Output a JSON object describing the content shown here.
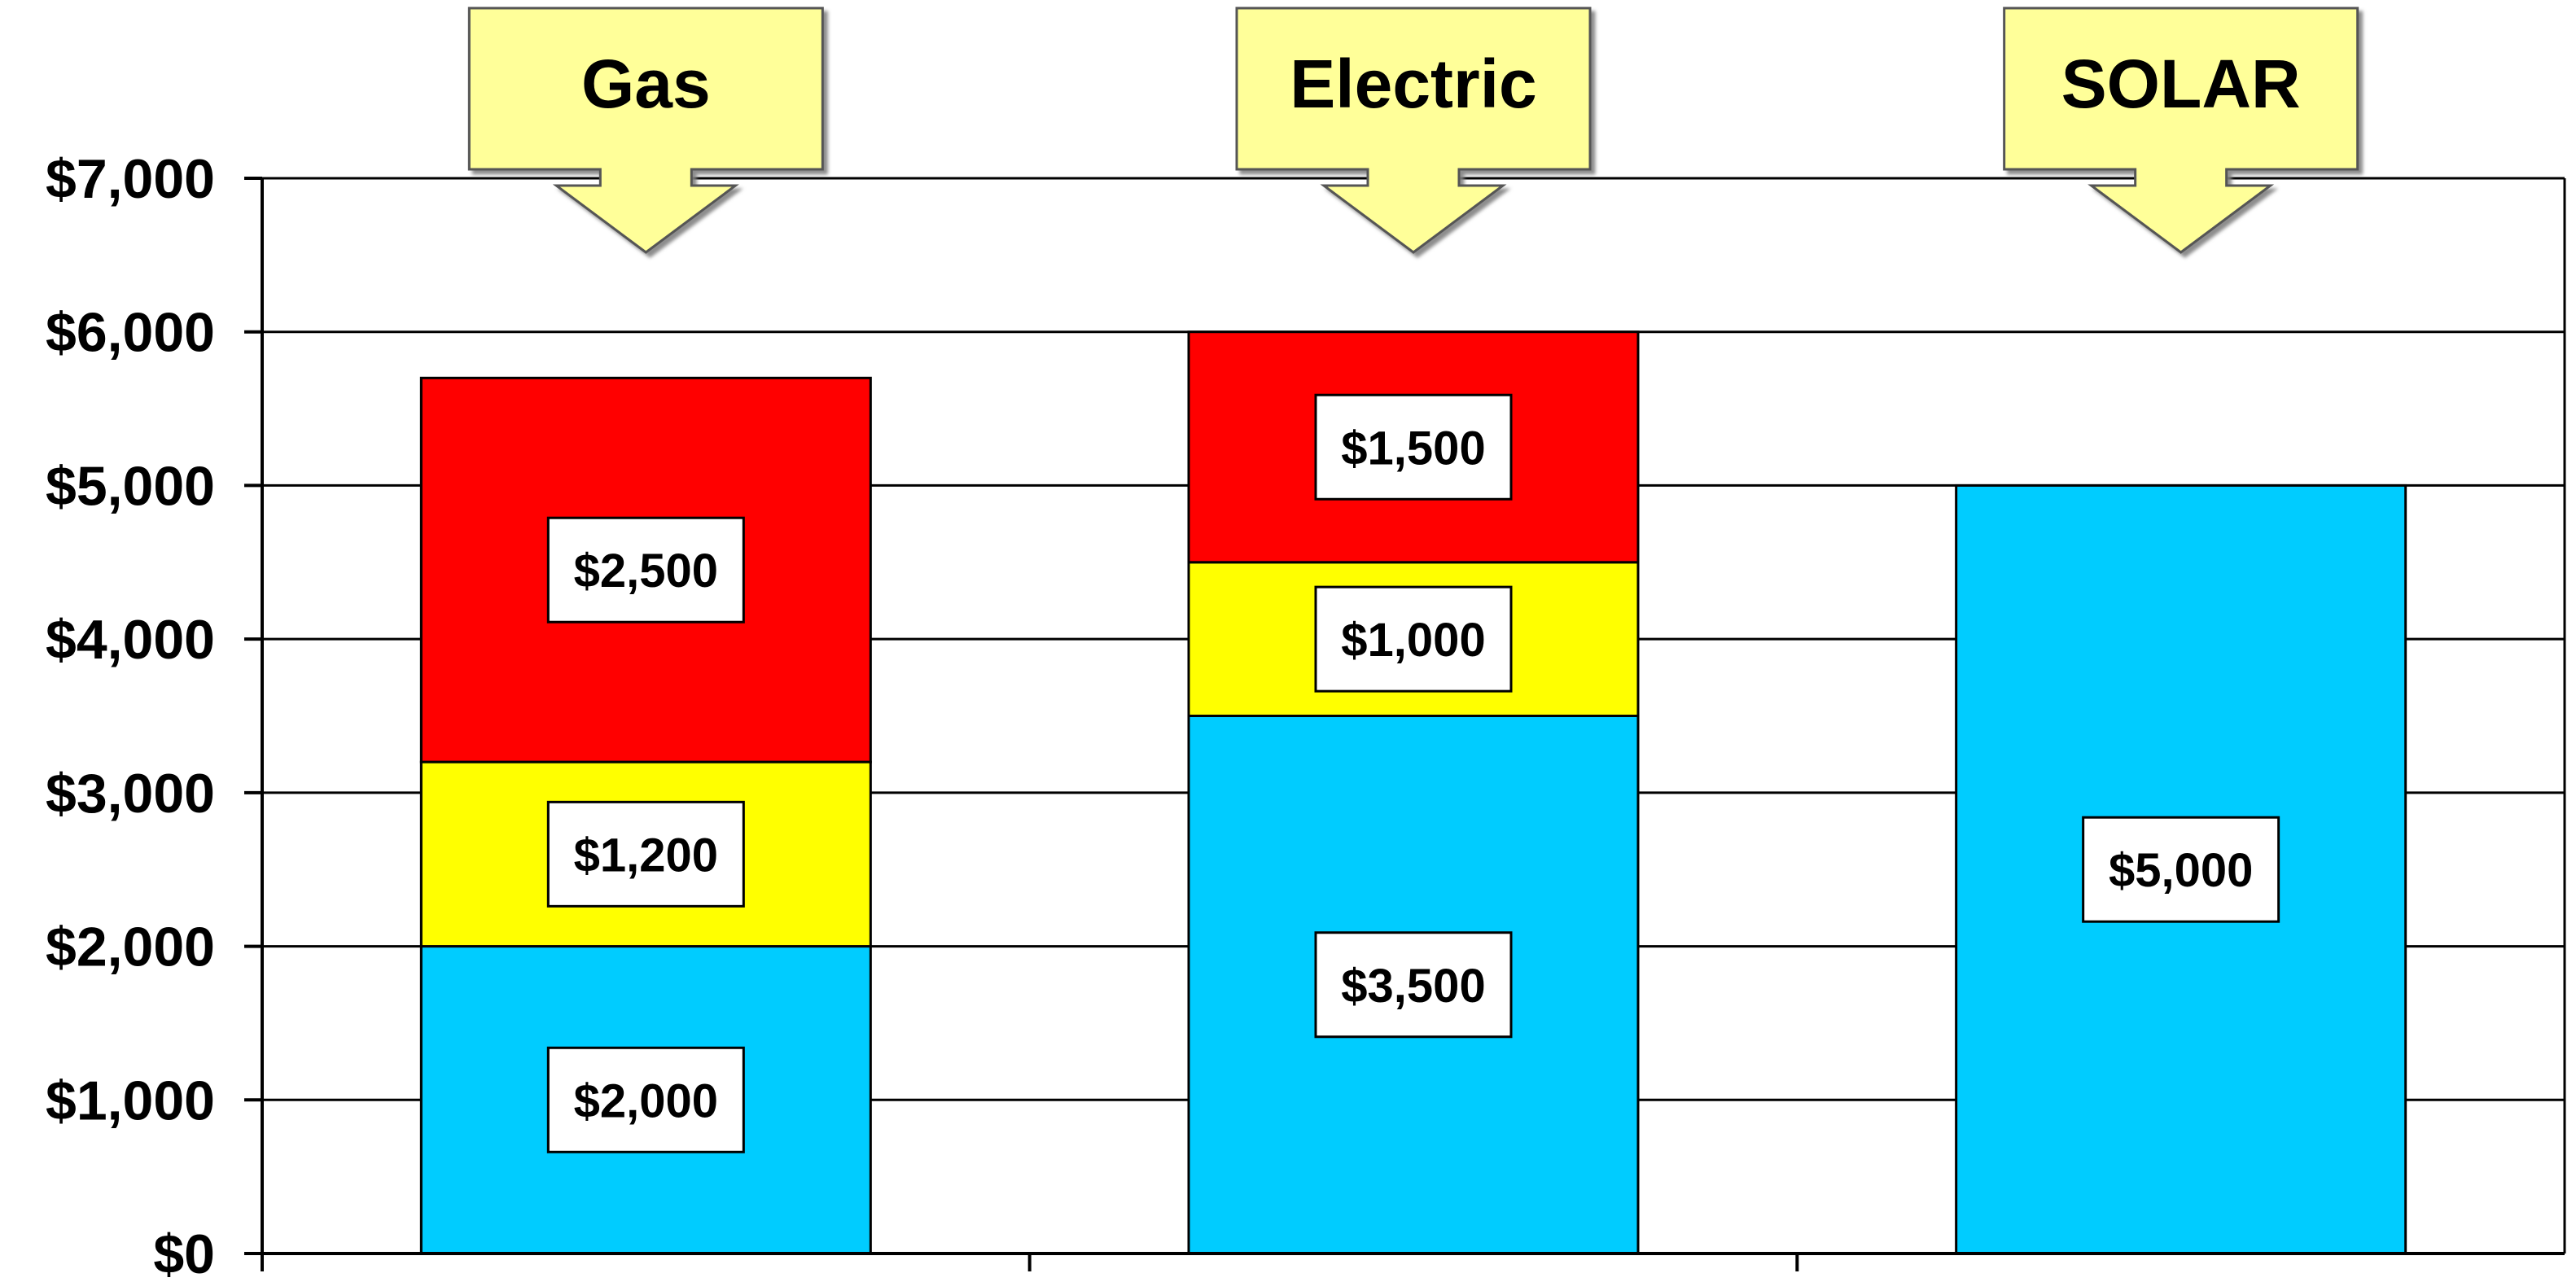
{
  "chart_data": {
    "type": "bar",
    "stacked": true,
    "categories": [
      "Gas",
      "Electric",
      "SOLAR"
    ],
    "series": [
      {
        "color": "#00ccff",
        "values": [
          2000,
          3500,
          5000
        ]
      },
      {
        "color": "#ffff00",
        "values": [
          1200,
          1000,
          0
        ]
      },
      {
        "color": "#ff0000",
        "values": [
          2500,
          1500,
          0
        ]
      }
    ],
    "data_labels": [
      [
        "$2,000",
        "$1,200",
        "$2,500"
      ],
      [
        "$3,500",
        "$1,000",
        "$1,500"
      ],
      [
        "$5,000",
        "",
        ""
      ]
    ],
    "y_ticks": [
      0,
      1000,
      2000,
      3000,
      4000,
      5000,
      6000,
      7000
    ],
    "y_tick_labels": [
      "$0",
      "$1,000",
      "$2,000",
      "$3,000",
      "$4,000",
      "$5,000",
      "$6,000",
      "$7,000"
    ],
    "ylim": [
      0,
      7000
    ],
    "grid": true,
    "legend": false,
    "category_callouts": [
      "Gas",
      "Electric",
      "SOLAR"
    ],
    "callout_color": "#ffff99",
    "title": "",
    "xlabel": "",
    "ylabel": ""
  }
}
